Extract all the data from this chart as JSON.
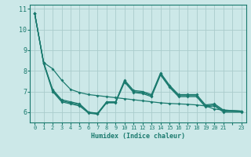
{
  "title": "",
  "xlabel": "Humidex (Indice chaleur)",
  "ylabel": "",
  "background_color": "#cce8e8",
  "grid_color": "#aacccc",
  "line_color": "#1a7a6e",
  "xlim": [
    -0.5,
    23.5
  ],
  "ylim": [
    5.5,
    11.2
  ],
  "yticks": [
    6,
    7,
    8,
    9,
    10,
    11
  ],
  "xtick_labels": [
    "0",
    "1",
    "2",
    "3",
    "4",
    "5",
    "6",
    "7",
    "8",
    "9",
    "10",
    "11",
    "12",
    "13",
    "14",
    "15",
    "16",
    "17",
    "18",
    "19",
    "20",
    "21",
    "",
    "23"
  ],
  "xtick_positions": [
    0,
    1,
    2,
    3,
    4,
    5,
    6,
    7,
    8,
    9,
    10,
    11,
    12,
    13,
    14,
    15,
    16,
    17,
    18,
    19,
    20,
    21,
    22,
    23
  ],
  "x_values": [
    0,
    1,
    2,
    3,
    4,
    5,
    6,
    7,
    8,
    9,
    10,
    11,
    12,
    13,
    14,
    15,
    16,
    17,
    18,
    19,
    20,
    21,
    23
  ],
  "series1": [
    10.8,
    8.4,
    8.1,
    7.55,
    7.1,
    6.95,
    6.85,
    6.8,
    6.75,
    6.7,
    6.65,
    6.6,
    6.55,
    6.5,
    6.45,
    6.42,
    6.4,
    6.38,
    6.35,
    6.3,
    6.15,
    6.1,
    6.05
  ],
  "series2": [
    10.8,
    8.4,
    7.1,
    6.6,
    6.5,
    6.4,
    6.0,
    5.95,
    6.5,
    6.5,
    7.55,
    7.05,
    7.0,
    6.85,
    7.9,
    7.3,
    6.85,
    6.85,
    6.85,
    6.35,
    6.4,
    6.1,
    6.05
  ],
  "series3": [
    10.8,
    8.4,
    7.05,
    6.55,
    6.45,
    6.35,
    5.98,
    5.93,
    6.47,
    6.47,
    7.5,
    7.0,
    6.95,
    6.8,
    7.85,
    7.25,
    6.8,
    6.8,
    6.8,
    6.3,
    6.35,
    6.05,
    6.02
  ],
  "series4": [
    10.8,
    8.35,
    7.0,
    6.5,
    6.4,
    6.3,
    5.95,
    5.9,
    6.45,
    6.45,
    7.45,
    6.95,
    6.9,
    6.75,
    7.8,
    7.2,
    6.75,
    6.75,
    6.75,
    6.25,
    6.3,
    6.0,
    6.0
  ]
}
